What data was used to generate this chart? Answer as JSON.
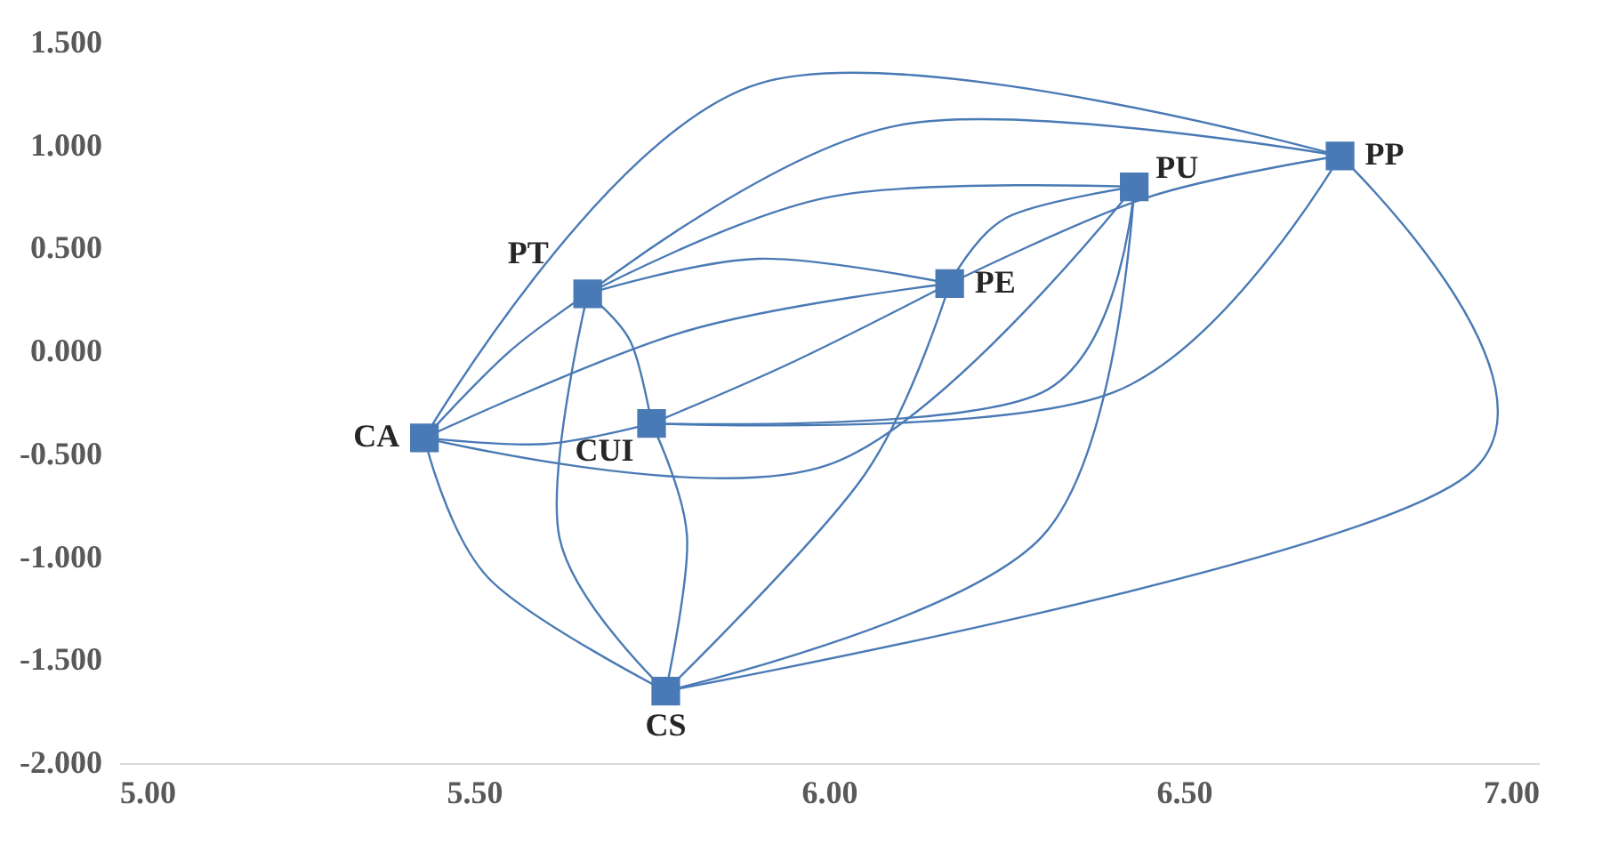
{
  "chart_data": {
    "type": "scatter",
    "xlim": [
      5.0,
      7.0
    ],
    "xticks": [
      {
        "value": 5.0,
        "label": "5.00"
      },
      {
        "value": 5.5,
        "label": "5.50"
      },
      {
        "value": 6.0,
        "label": "6.00"
      },
      {
        "value": 6.5,
        "label": "6.50"
      },
      {
        "value": 7.0,
        "label": "7.00"
      }
    ],
    "ylim": [
      -2.0,
      1.5
    ],
    "yticks": [
      {
        "value": -2.0,
        "label": "-2.000"
      },
      {
        "value": -1.5,
        "label": "-1.500"
      },
      {
        "value": -1.0,
        "label": "-1.000"
      },
      {
        "value": -0.5,
        "label": "-0.500"
      },
      {
        "value": 0.0,
        "label": "0.000"
      },
      {
        "value": 0.5,
        "label": "0.500"
      },
      {
        "value": 1.0,
        "label": "1.000"
      },
      {
        "value": 1.5,
        "label": "1.500"
      }
    ],
    "grid": false,
    "legend": false,
    "marker": "square",
    "series": [
      {
        "type": "line",
        "marker": "none",
        "color": "#4a7ab5",
        "x": [
          6.72,
          5.9,
          5.43
        ],
        "values": [
          0.95,
          1.3,
          -0.42
        ]
      },
      {
        "type": "line",
        "marker": "none",
        "color": "#4a7ab5",
        "x": [
          6.72,
          6.1,
          5.66
        ],
        "values": [
          0.95,
          1.1,
          0.28
        ]
      },
      {
        "type": "line",
        "marker": "none",
        "color": "#4a7ab5",
        "x": [
          6.72,
          6.45,
          6.17
        ],
        "values": [
          0.95,
          0.75,
          0.33
        ]
      },
      {
        "type": "line",
        "marker": "none",
        "color": "#4a7ab5",
        "x": [
          6.72,
          6.4,
          5.75
        ],
        "values": [
          0.95,
          -0.2,
          -0.35
        ]
      },
      {
        "type": "line",
        "marker": "none",
        "color": "#4a7ab5",
        "x": [
          6.72,
          6.9,
          5.77
        ],
        "values": [
          0.95,
          -0.6,
          -1.65
        ]
      },
      {
        "type": "line",
        "marker": "none",
        "color": "#4a7ab5",
        "x": [
          6.43,
          6.0,
          5.43
        ],
        "values": [
          0.8,
          -0.55,
          -0.42
        ]
      },
      {
        "type": "line",
        "marker": "none",
        "color": "#4a7ab5",
        "x": [
          6.43,
          6.0,
          5.66
        ],
        "values": [
          0.8,
          0.75,
          0.28
        ]
      },
      {
        "type": "line",
        "marker": "none",
        "color": "#4a7ab5",
        "x": [
          6.43,
          6.25,
          6.17
        ],
        "values": [
          0.8,
          0.65,
          0.33
        ]
      },
      {
        "type": "line",
        "marker": "none",
        "color": "#4a7ab5",
        "x": [
          6.43,
          6.3,
          5.75
        ],
        "values": [
          0.8,
          -0.2,
          -0.35
        ]
      },
      {
        "type": "line",
        "marker": "none",
        "color": "#4a7ab5",
        "x": [
          6.43,
          6.3,
          5.77
        ],
        "values": [
          0.8,
          -0.9,
          -1.65
        ]
      },
      {
        "type": "line",
        "marker": "none",
        "color": "#4a7ab5",
        "x": [
          6.17,
          5.9,
          5.66
        ],
        "values": [
          0.33,
          0.45,
          0.28
        ]
      },
      {
        "type": "line",
        "marker": "none",
        "color": "#4a7ab5",
        "x": [
          6.17,
          5.8,
          5.43
        ],
        "values": [
          0.33,
          0.1,
          -0.42
        ]
      },
      {
        "type": "line",
        "marker": "none",
        "color": "#4a7ab5",
        "x": [
          6.17,
          5.95,
          5.75
        ],
        "values": [
          0.33,
          -0.05,
          -0.35
        ]
      },
      {
        "type": "line",
        "marker": "none",
        "color": "#4a7ab5",
        "x": [
          6.17,
          6.05,
          5.77
        ],
        "values": [
          0.33,
          -0.6,
          -1.65
        ]
      },
      {
        "type": "line",
        "marker": "none",
        "color": "#4a7ab5",
        "x": [
          5.66,
          5.55,
          5.43
        ],
        "values": [
          0.28,
          0.0,
          -0.42
        ]
      },
      {
        "type": "line",
        "marker": "none",
        "color": "#4a7ab5",
        "x": [
          5.66,
          5.72,
          5.75
        ],
        "values": [
          0.28,
          0.05,
          -0.35
        ]
      },
      {
        "type": "line",
        "marker": "none",
        "color": "#4a7ab5",
        "x": [
          5.66,
          5.62,
          5.77
        ],
        "values": [
          0.28,
          -0.9,
          -1.65
        ]
      },
      {
        "type": "line",
        "marker": "none",
        "color": "#4a7ab5",
        "x": [
          5.75,
          5.6,
          5.43
        ],
        "values": [
          -0.35,
          -0.45,
          -0.42
        ]
      },
      {
        "type": "line",
        "marker": "none",
        "color": "#4a7ab5",
        "x": [
          5.75,
          5.8,
          5.77
        ],
        "values": [
          -0.35,
          -0.9,
          -1.65
        ]
      },
      {
        "type": "line",
        "marker": "none",
        "color": "#4a7ab5",
        "x": [
          5.43,
          5.52,
          5.77
        ],
        "values": [
          -0.42,
          -1.1,
          -1.65
        ]
      },
      {
        "name": "PP",
        "color": "#4a7ab5",
        "x": [
          6.72
        ],
        "values": [
          0.95
        ]
      },
      {
        "name": "PU",
        "color": "#4a7ab5",
        "x": [
          6.43
        ],
        "values": [
          0.8
        ]
      },
      {
        "name": "PE",
        "color": "#4a7ab5",
        "x": [
          6.17
        ],
        "values": [
          0.33
        ]
      },
      {
        "name": "PT",
        "color": "#4a7ab5",
        "x": [
          5.66
        ],
        "values": [
          0.28
        ]
      },
      {
        "name": "CUI",
        "color": "#4a7ab5",
        "x": [
          5.75
        ],
        "values": [
          -0.35
        ]
      },
      {
        "name": "CA",
        "color": "#4a7ab5",
        "x": [
          5.43
        ],
        "values": [
          -0.42
        ]
      },
      {
        "name": "CS",
        "color": "#4a7ab5",
        "x": [
          5.77
        ],
        "values": [
          -1.65
        ]
      }
    ]
  }
}
